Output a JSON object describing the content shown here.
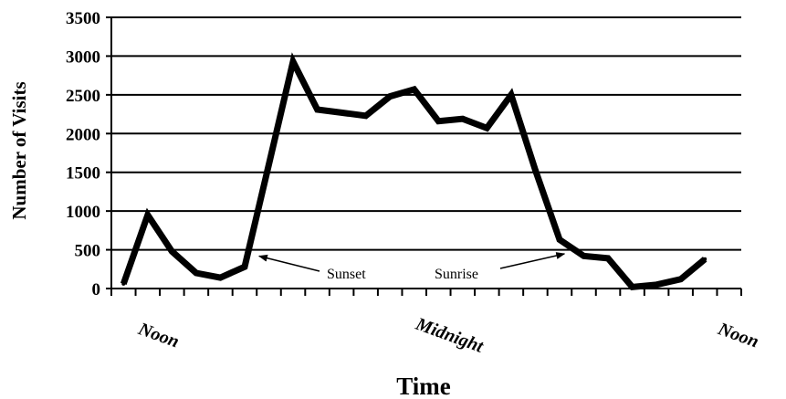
{
  "chart_data": {
    "type": "line",
    "title": "",
    "xlabel": "Time",
    "ylabel": "Number of Visits",
    "ylim": [
      0,
      3500
    ],
    "yticks": [
      0,
      500,
      1000,
      1500,
      2000,
      2500,
      3000,
      3500
    ],
    "ytick_labels": [
      "0",
      "500",
      "1000",
      "1500",
      "2000",
      "2500",
      "3000",
      "3500"
    ],
    "grid": "horizontal",
    "x_categories": [
      {
        "label": "Noon",
        "at": 1
      },
      {
        "label": "Midnight",
        "at": 13
      },
      {
        "label": "Noon",
        "at": 25
      }
    ],
    "series": [
      {
        "name": "",
        "color": "#000000",
        "x": [
          0,
          1,
          2,
          3,
          4,
          5,
          6,
          7,
          8,
          9,
          10,
          11,
          12,
          13,
          14,
          15,
          16,
          17,
          18,
          19,
          20,
          21,
          22,
          23,
          24
        ],
        "values": [
          60,
          950,
          480,
          200,
          140,
          280,
          1600,
          2930,
          2310,
          2270,
          2230,
          2480,
          2570,
          2160,
          2190,
          2070,
          2500,
          1530,
          630,
          420,
          390,
          20,
          50,
          120,
          380
        ]
      }
    ],
    "annotations": [
      {
        "text": "Sunset",
        "points_to_x": 5.6,
        "points_to_y": 430
      },
      {
        "text": "Sunrise",
        "points_to_x": 18.2,
        "points_to_y": 460
      }
    ]
  }
}
